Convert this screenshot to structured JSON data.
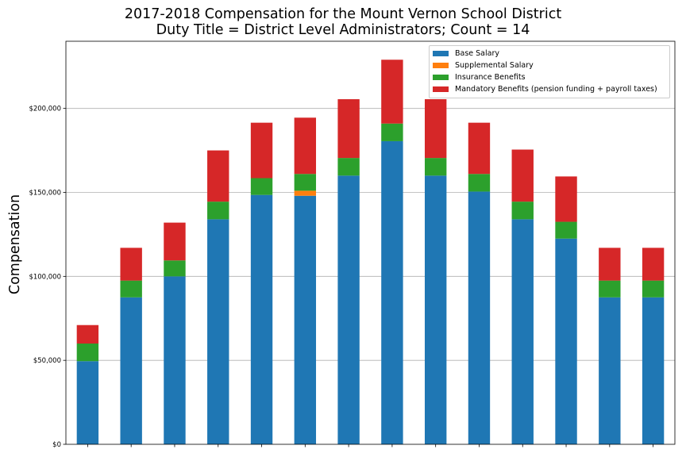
{
  "chart_data": {
    "type": "bar",
    "stacked": true,
    "title": [
      "2017-2018 Compensation for the Mount Vernon School District",
      "Duty Title = District Level Administrators; Count = 14"
    ],
    "xlabel": "",
    "ylabel": "Compensation",
    "ylim": [
      0,
      240000
    ],
    "yticks": [
      0,
      50000,
      100000,
      150000,
      200000
    ],
    "ytick_labels": [
      "$0",
      "$50,000",
      "$100,000",
      "$150,000",
      "$200,000"
    ],
    "grid": "horizontal",
    "legend_position": "top-right",
    "categories": [
      "",
      "",
      "",
      "",
      "",
      "",
      "",
      "",
      "",
      "",
      "",
      "",
      "",
      ""
    ],
    "series": [
      {
        "name": "Base Salary",
        "color": "#1f77b4",
        "values": [
          49500,
          87500,
          100000,
          134000,
          148500,
          148000,
          160000,
          180500,
          160000,
          150500,
          134000,
          122500,
          87500,
          87500
        ]
      },
      {
        "name": "Supplemental Salary",
        "color": "#ff7f0e",
        "values": [
          0,
          0,
          0,
          0,
          0,
          3000,
          0,
          0,
          0,
          0,
          0,
          0,
          0,
          0
        ]
      },
      {
        "name": "Insurance Benefits",
        "color": "#2ca02c",
        "values": [
          10500,
          10000,
          9500,
          10500,
          10000,
          10000,
          10500,
          10500,
          10500,
          10500,
          10500,
          10000,
          10000,
          10000
        ]
      },
      {
        "name": "Mandatory Benefits (pension funding + payroll taxes)",
        "color": "#d62728",
        "values": [
          11000,
          19500,
          22500,
          30500,
          33000,
          33500,
          35000,
          38000,
          35000,
          30500,
          31000,
          27000,
          19500,
          19500
        ]
      }
    ]
  }
}
